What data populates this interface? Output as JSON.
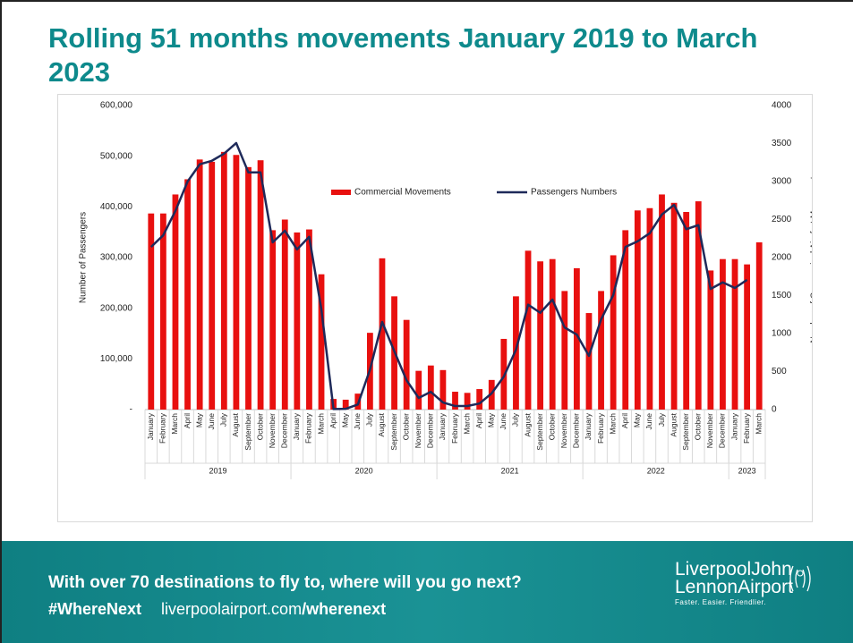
{
  "slide": {
    "title": "Rolling 51 months movements January 2019 to March 2023"
  },
  "chart_data": {
    "type": "bar-line",
    "ylabel": "Number of Passengers",
    "y2label": "Number of Commerical Aircfrat Movements",
    "ylim": [
      0,
      600000
    ],
    "yticks": [
      {
        "value": 0,
        "label": "-"
      },
      {
        "value": 100000,
        "label": "100,000"
      },
      {
        "value": 200000,
        "label": "200,000"
      },
      {
        "value": 300000,
        "label": "300,000"
      },
      {
        "value": 400000,
        "label": "400,000"
      },
      {
        "value": 500000,
        "label": "500,000"
      },
      {
        "value": 600000,
        "label": "600,000"
      }
    ],
    "y2lim": [
      0,
      4000
    ],
    "y2ticks": [
      0,
      500,
      1000,
      1500,
      2000,
      2500,
      3000,
      3500,
      4000
    ],
    "groups": [
      {
        "label": "2019",
        "categories": [
          "January",
          "February",
          "March",
          "April",
          "May",
          "June",
          "July",
          "August",
          "September",
          "October",
          "November",
          "December"
        ]
      },
      {
        "label": "2020",
        "categories": [
          "January",
          "February",
          "March",
          "April",
          "May",
          "June",
          "July",
          "August",
          "September",
          "October",
          "November",
          "December"
        ]
      },
      {
        "label": "2021",
        "categories": [
          "January",
          "February",
          "March",
          "April",
          "May",
          "June",
          "July",
          "August",
          "September",
          "October",
          "November",
          "December"
        ]
      },
      {
        "label": "2022",
        "categories": [
          "January",
          "February",
          "March",
          "April",
          "May",
          "June",
          "July",
          "August",
          "September",
          "October",
          "November",
          "December"
        ]
      },
      {
        "label": "2023",
        "categories": [
          "January",
          "February",
          "March"
        ]
      }
    ],
    "series": [
      {
        "name": "Commercial Movements",
        "kind": "bar",
        "axis": "y2",
        "color": "#e8100f",
        "values": [
          2580,
          2580,
          2830,
          3030,
          3290,
          3260,
          3390,
          3350,
          3190,
          3280,
          2360,
          2500,
          2330,
          2370,
          1780,
          140,
          130,
          210,
          1010,
          1990,
          1490,
          1180,
          510,
          580,
          520,
          235,
          220,
          270,
          390,
          930,
          1490,
          2090,
          1950,
          1980,
          1560,
          1860,
          1270,
          1560,
          2030,
          2360,
          2620,
          2650,
          2830,
          2720,
          2600,
          2740,
          1830,
          1980,
          1980,
          1910,
          2200
        ]
      },
      {
        "name": "Passengers Numbers",
        "kind": "line",
        "axis": "y",
        "color": "#1f2a5a",
        "values": [
          321000,
          344000,
          392000,
          450000,
          484000,
          491000,
          505000,
          526000,
          468000,
          468000,
          330000,
          353000,
          316000,
          341000,
          198000,
          1000,
          1500,
          10000,
          79000,
          173000,
          115000,
          58000,
          23000,
          35000,
          14000,
          7000,
          7000,
          12000,
          32000,
          65000,
          118000,
          207000,
          191000,
          217000,
          162000,
          148000,
          106000,
          178000,
          226000,
          321000,
          332000,
          348000,
          385000,
          404000,
          356000,
          364000,
          238000,
          251000,
          240000,
          256000,
          null
        ]
      }
    ]
  },
  "footer": {
    "tagline": "With over 70 destinations to fly to, where will you go next?",
    "hashtag": "#WhereNext",
    "url_base": "liverpoolairport.com",
    "url_path": "/wherenext",
    "logo_line1": "LiverpoolJohn",
    "logo_line2": "LennonAirport",
    "logo_slogan": "Faster. Easier. Friendlier."
  }
}
